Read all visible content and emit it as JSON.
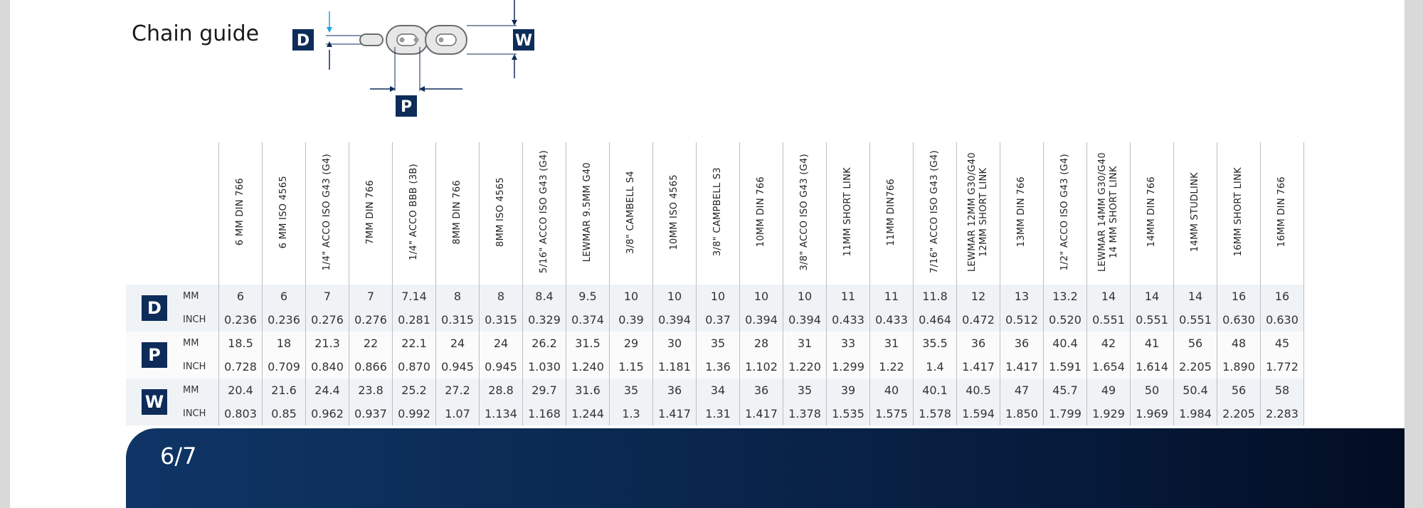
{
  "title": "Chain guide",
  "diagram": {
    "label_d": "D",
    "label_w": "W",
    "label_p": "P"
  },
  "columns": [
    "6 MM DIN 766",
    "6 MM ISO 4565",
    "1/4\" ACCO ISO G43 (G4)",
    "7MM DIN 766",
    "1/4\" ACCO BBB (3B)",
    "8MM DIN 766",
    "8MM ISO 4565",
    "5/16\" ACCO ISO G43 (G4)",
    "LEWMAR 9.5MM G40",
    "3/8\" CAMBELL S4",
    "10MM ISO 4565",
    "3/8\" CAMPBELL S3",
    "10MM DIN 766",
    "3/8\" ACCO ISO G43 (G4)",
    "11MM SHORT LINK",
    "11MM DIN766",
    "7/16\" ACCO ISO G43 (G4)",
    "LEWMAR 12MM G30/G40\n12MM SHORT LINK",
    "13MM DIN 766",
    "1/2\" ACCO ISO G43 (G4)",
    "LEWMAR 14MM G30/G40\n14 MM SHORT LINK",
    "14MM DIN 766",
    "14MM STUDLINK",
    "16MM SHORT LINK",
    "16MM DIN 766"
  ],
  "groups": [
    {
      "label": "D",
      "rows": [
        {
          "unit": "MM",
          "values": [
            "6",
            "6",
            "7",
            "7",
            "7.14",
            "8",
            "8",
            "8.4",
            "9.5",
            "10",
            "10",
            "10",
            "10",
            "10",
            "11",
            "11",
            "11.8",
            "12",
            "13",
            "13.2",
            "14",
            "14",
            "14",
            "16",
            "16"
          ]
        },
        {
          "unit": "INCH",
          "values": [
            "0.236",
            "0.236",
            "0.276",
            "0.276",
            "0.281",
            "0.315",
            "0.315",
            "0.329",
            "0.374",
            "0.39",
            "0.394",
            "0.37",
            "0.394",
            "0.394",
            "0.433",
            "0.433",
            "0.464",
            "0.472",
            "0.512",
            "0.520",
            "0.551",
            "0.551",
            "0.551",
            "0.630",
            "0.630"
          ]
        }
      ]
    },
    {
      "label": "P",
      "rows": [
        {
          "unit": "MM",
          "values": [
            "18.5",
            "18",
            "21.3",
            "22",
            "22.1",
            "24",
            "24",
            "26.2",
            "31.5",
            "29",
            "30",
            "35",
            "28",
            "31",
            "33",
            "31",
            "35.5",
            "36",
            "36",
            "40.4",
            "42",
            "41",
            "56",
            "48",
            "45"
          ]
        },
        {
          "unit": "INCH",
          "values": [
            "0.728",
            "0.709",
            "0.840",
            "0.866",
            "0.870",
            "0.945",
            "0.945",
            "1.030",
            "1.240",
            "1.15",
            "1.181",
            "1.36",
            "1.102",
            "1.220",
            "1.299",
            "1.22",
            "1.4",
            "1.417",
            "1.417",
            "1.591",
            "1.654",
            "1.614",
            "2.205",
            "1.890",
            "1.772"
          ]
        }
      ]
    },
    {
      "label": "W",
      "rows": [
        {
          "unit": "MM",
          "values": [
            "20.4",
            "21.6",
            "24.4",
            "23.8",
            "25.2",
            "27.2",
            "28.8",
            "29.7",
            "31.6",
            "35",
            "36",
            "34",
            "36",
            "35",
            "39",
            "40",
            "40.1",
            "40.5",
            "47",
            "45.7",
            "49",
            "50",
            "50.4",
            "56",
            "58"
          ]
        },
        {
          "unit": "INCH",
          "values": [
            "0.803",
            "0.85",
            "0.962",
            "0.937",
            "0.992",
            "1.07",
            "1.134",
            "1.168",
            "1.244",
            "1.3",
            "1.417",
            "1.31",
            "1.417",
            "1.378",
            "1.535",
            "1.575",
            "1.578",
            "1.594",
            "1.850",
            "1.799",
            "1.929",
            "1.969",
            "1.984",
            "2.205",
            "2.283"
          ]
        }
      ]
    }
  ],
  "footer": {
    "page": "6/7"
  },
  "colors": {
    "navy": "#0d2c5a",
    "band_light": "#f0f3f6"
  }
}
